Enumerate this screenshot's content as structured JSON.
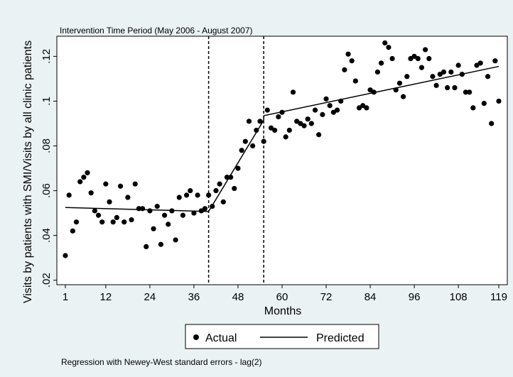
{
  "chart_data": {
    "type": "scatter",
    "annotation_top": "Intervention Time Period (May 2006 - August 2007)",
    "xlabel": "Months",
    "ylabel": "Visits by patients with SMI/Visits by all clinic patients",
    "note": "Regression with Newey-West standard errors - lag(2)",
    "xlim": [
      0,
      120
    ],
    "ylim": [
      0.018,
      0.129
    ],
    "xticks": [
      1,
      12,
      24,
      36,
      48,
      60,
      72,
      84,
      96,
      108,
      119
    ],
    "yticks": [
      0.02,
      0.04,
      0.06,
      0.08,
      0.1,
      0.12
    ],
    "ytick_labels": [
      ".02",
      ".04",
      ".06",
      ".08",
      ".1",
      ".12"
    ],
    "vlines": [
      40,
      55
    ],
    "grid": false,
    "legend": {
      "position": "bottom",
      "entries": [
        "Actual",
        "Predicted"
      ]
    },
    "series": [
      {
        "name": "Actual",
        "type": "scatter",
        "x": [
          1,
          2,
          3,
          4,
          5,
          6,
          7,
          8,
          9,
          10,
          11,
          12,
          13,
          14,
          15,
          16,
          17,
          18,
          19,
          20,
          21,
          22,
          23,
          24,
          25,
          26,
          27,
          28,
          29,
          30,
          31,
          32,
          33,
          34,
          35,
          36,
          37,
          38,
          39,
          40,
          41,
          42,
          43,
          44,
          45,
          46,
          47,
          48,
          49,
          50,
          51,
          52,
          53,
          54,
          55,
          56,
          57,
          58,
          59,
          60,
          61,
          62,
          63,
          64,
          65,
          66,
          67,
          68,
          69,
          70,
          71,
          72,
          73,
          74,
          75,
          76,
          77,
          78,
          79,
          80,
          81,
          82,
          83,
          84,
          85,
          86,
          87,
          88,
          89,
          90,
          91,
          92,
          93,
          94,
          95,
          96,
          97,
          98,
          99,
          100,
          101,
          102,
          103,
          104,
          105,
          106,
          107,
          108,
          109,
          110,
          111,
          112,
          113,
          114,
          115,
          116,
          117,
          118,
          119
        ],
        "y": [
          0.031,
          0.058,
          0.042,
          0.046,
          0.064,
          0.066,
          0.068,
          0.059,
          0.051,
          0.049,
          0.046,
          0.063,
          0.055,
          0.046,
          0.048,
          0.062,
          0.046,
          0.057,
          0.047,
          0.063,
          0.052,
          0.052,
          0.035,
          0.051,
          0.043,
          0.053,
          0.036,
          0.049,
          0.045,
          0.051,
          0.038,
          0.057,
          0.049,
          0.058,
          0.06,
          0.05,
          0.058,
          0.051,
          0.052,
          0.058,
          0.053,
          0.06,
          0.063,
          0.055,
          0.066,
          0.066,
          0.061,
          0.07,
          0.078,
          0.082,
          0.091,
          0.08,
          0.087,
          0.091,
          0.082,
          0.096,
          0.088,
          0.087,
          0.093,
          0.095,
          0.084,
          0.087,
          0.104,
          0.091,
          0.09,
          0.089,
          0.092,
          0.09,
          0.096,
          0.085,
          0.094,
          0.101,
          0.098,
          0.095,
          0.096,
          0.1,
          0.114,
          0.121,
          0.118,
          0.109,
          0.097,
          0.098,
          0.097,
          0.105,
          0.104,
          0.113,
          0.117,
          0.126,
          0.124,
          0.119,
          0.105,
          0.108,
          0.102,
          0.111,
          0.119,
          0.12,
          0.119,
          0.115,
          0.123,
          0.119,
          0.111,
          0.107,
          0.112,
          0.113,
          0.106,
          0.113,
          0.106,
          0.116,
          0.112,
          0.104,
          0.104,
          0.097,
          0.116,
          0.117,
          0.099,
          0.111,
          0.09,
          0.118,
          0.1
        ]
      },
      {
        "name": "Predicted",
        "type": "line",
        "x": [
          1,
          40,
          55,
          55,
          119
        ],
        "y": [
          0.0525,
          0.0507,
          0.0915,
          0.0935,
          0.1155
        ]
      }
    ]
  }
}
